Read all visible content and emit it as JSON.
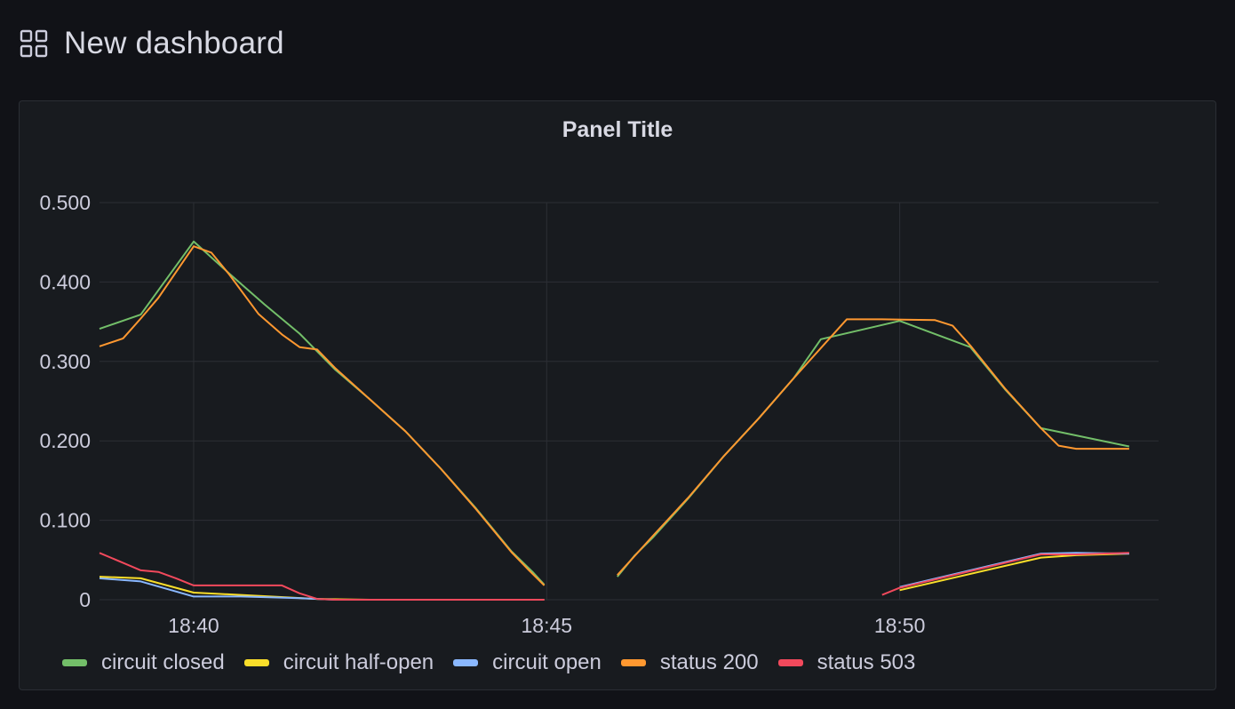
{
  "dashboard": {
    "title": "New dashboard",
    "icon": "dashboard-grid-icon"
  },
  "panel": {
    "title": "Panel Title"
  },
  "colors": {
    "background": "#111217",
    "panel_bg": "#181b1f",
    "grid": "#2c2f35",
    "text": "#ccccdc"
  },
  "chart_data": {
    "type": "line",
    "title": "Panel Title",
    "xlabel": "",
    "ylabel": "",
    "ylim": [
      0,
      0.5
    ],
    "xlim": [
      "18:38:40",
      "18:53:40"
    ],
    "x_ticks": [
      "18:40",
      "18:45",
      "18:50"
    ],
    "y_ticks": [
      "0",
      "0.100",
      "0.200",
      "0.300",
      "0.400",
      "0.500"
    ],
    "grid": true,
    "legend_position": "bottom",
    "series": [
      {
        "name": "circuit closed",
        "color": "#73bf69",
        "segments": [
          [
            [
              "18:38:40",
              0.341
            ],
            [
              "18:39:15",
              0.359
            ],
            [
              "18:40:00",
              0.451
            ],
            [
              "18:40:30",
              0.411
            ],
            [
              "18:41:00",
              0.372
            ],
            [
              "18:41:30",
              0.335
            ],
            [
              "18:42:00",
              0.29
            ],
            [
              "18:42:30",
              0.252
            ],
            [
              "18:43:00",
              0.212
            ],
            [
              "18:43:30",
              0.165
            ],
            [
              "18:44:00",
              0.115
            ],
            [
              "18:44:30",
              0.061
            ],
            [
              "18:44:48",
              0.035
            ],
            [
              "18:44:58",
              0.019
            ]
          ],
          [
            [
              "18:46:00",
              0.029
            ],
            [
              "18:46:15",
              0.056
            ],
            [
              "18:46:30",
              0.078
            ],
            [
              "18:47:00",
              0.127
            ],
            [
              "18:47:30",
              0.18
            ],
            [
              "18:48:00",
              0.228
            ],
            [
              "18:48:30",
              0.279
            ],
            [
              "18:48:53",
              0.328
            ],
            [
              "18:50:00",
              0.351
            ],
            [
              "18:51:00",
              0.318
            ],
            [
              "18:51:30",
              0.264
            ],
            [
              "18:52:00",
              0.216
            ],
            [
              "18:53:15",
              0.193
            ]
          ]
        ]
      },
      {
        "name": "circuit half-open",
        "color": "#fade2a",
        "segments": [
          [
            [
              "18:38:40",
              0.029
            ],
            [
              "18:39:15",
              0.027
            ],
            [
              "18:40:00",
              0.009
            ],
            [
              "18:40:40",
              0.006
            ],
            [
              "18:41:45",
              0.001
            ],
            [
              "18:42:30",
              0.0
            ],
            [
              "18:44:58",
              0.0
            ]
          ],
          [
            [
              "18:50:00",
              0.012
            ],
            [
              "18:52:00",
              0.053
            ],
            [
              "18:52:30",
              0.056
            ],
            [
              "18:53:15",
              0.058
            ]
          ]
        ]
      },
      {
        "name": "circuit open",
        "color": "#8ab8ff",
        "segments": [
          [
            [
              "18:38:40",
              0.027
            ],
            [
              "18:39:15",
              0.023
            ],
            [
              "18:40:00",
              0.004
            ],
            [
              "18:40:40",
              0.004
            ],
            [
              "18:41:30",
              0.002
            ],
            [
              "18:42:00",
              0.0
            ],
            [
              "18:44:58",
              0.0
            ]
          ],
          [
            [
              "18:50:00",
              0.016
            ],
            [
              "18:52:00",
              0.058
            ],
            [
              "18:52:30",
              0.059
            ],
            [
              "18:53:15",
              0.058
            ]
          ]
        ]
      },
      {
        "name": "status 200",
        "color": "#ff9830",
        "segments": [
          [
            [
              "18:38:40",
              0.319
            ],
            [
              "18:39:00",
              0.329
            ],
            [
              "18:39:15",
              0.354
            ],
            [
              "18:39:30",
              0.38
            ],
            [
              "18:40:00",
              0.445
            ],
            [
              "18:40:15",
              0.437
            ],
            [
              "18:40:30",
              0.41
            ],
            [
              "18:40:55",
              0.36
            ],
            [
              "18:41:15",
              0.334
            ],
            [
              "18:41:30",
              0.318
            ],
            [
              "18:41:45",
              0.315
            ],
            [
              "18:42:00",
              0.292
            ],
            [
              "18:42:30",
              0.252
            ],
            [
              "18:43:00",
              0.212
            ],
            [
              "18:43:30",
              0.165
            ],
            [
              "18:44:00",
              0.114
            ],
            [
              "18:44:30",
              0.06
            ],
            [
              "18:44:45",
              0.037
            ],
            [
              "18:44:58",
              0.018
            ]
          ],
          [
            [
              "18:46:00",
              0.031
            ],
            [
              "18:46:30",
              0.08
            ],
            [
              "18:47:00",
              0.128
            ],
            [
              "18:47:30",
              0.18
            ],
            [
              "18:48:00",
              0.228
            ],
            [
              "18:48:30",
              0.279
            ],
            [
              "18:49:15",
              0.353
            ],
            [
              "18:49:45",
              0.353
            ],
            [
              "18:50:30",
              0.352
            ],
            [
              "18:50:45",
              0.345
            ],
            [
              "18:51:00",
              0.32
            ],
            [
              "18:51:30",
              0.265
            ],
            [
              "18:52:00",
              0.216
            ],
            [
              "18:52:15",
              0.194
            ],
            [
              "18:52:30",
              0.19
            ],
            [
              "18:53:15",
              0.19
            ]
          ]
        ]
      },
      {
        "name": "status 503",
        "color": "#f2495c",
        "segments": [
          [
            [
              "18:38:40",
              0.059
            ],
            [
              "18:39:15",
              0.037
            ],
            [
              "18:39:30",
              0.035
            ],
            [
              "18:39:45",
              0.027
            ],
            [
              "18:40:00",
              0.018
            ],
            [
              "18:41:15",
              0.018
            ],
            [
              "18:41:30",
              0.008
            ],
            [
              "18:41:45",
              0.001
            ],
            [
              "18:42:00",
              0.0
            ],
            [
              "18:44:58",
              0.0
            ]
          ],
          [
            [
              "18:49:45",
              0.006
            ],
            [
              "18:50:00",
              0.015
            ],
            [
              "18:52:00",
              0.057
            ],
            [
              "18:52:30",
              0.057
            ],
            [
              "18:53:15",
              0.059
            ]
          ]
        ]
      }
    ]
  }
}
